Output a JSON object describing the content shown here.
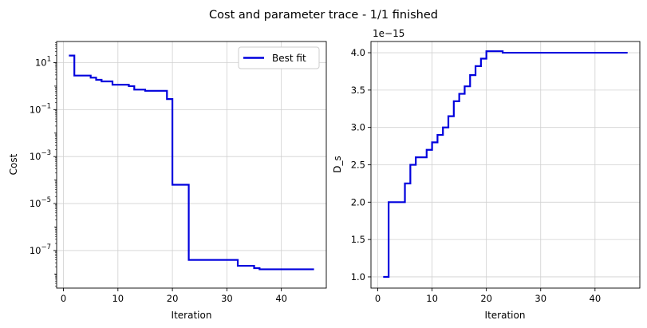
{
  "title": "Cost and parameter trace - 1/1 finished",
  "colors": {
    "line": "#0000dd",
    "grid": "#d0d0d0",
    "axis": "#000000"
  },
  "chart_data": [
    {
      "type": "line",
      "step": true,
      "scale": "log10",
      "xlabel": "Iteration",
      "ylabel": "Cost",
      "xlim": [
        -1.25,
        48.25
      ],
      "ylim_log10": [
        -8.6,
        1.9
      ],
      "xticks": [
        0,
        10,
        20,
        30,
        40
      ],
      "xtick_labels": [
        "0",
        "10",
        "20",
        "30",
        "40"
      ],
      "ytick_log10": [
        1,
        -1,
        -3,
        -5,
        -7
      ],
      "ytick_bases": [
        "10",
        "10",
        "10",
        "10",
        "10"
      ],
      "ytick_exponents": [
        "1",
        "−1",
        "−3",
        "−5",
        "−7"
      ],
      "grid": true,
      "legend": {
        "label": "Best fit",
        "position": "top-right"
      },
      "series": [
        {
          "name": "Best fit",
          "x": [
            1,
            2,
            5,
            6,
            7,
            9,
            12,
            13,
            15,
            19,
            20,
            23,
            32,
            35,
            36,
            46
          ],
          "log10y": [
            1.3,
            0.45,
            0.36,
            0.27,
            0.2,
            0.06,
            0.0,
            -0.15,
            -0.2,
            -0.55,
            -4.2,
            -7.4,
            -7.65,
            -7.75,
            -7.8,
            -7.8
          ]
        }
      ]
    },
    {
      "type": "line",
      "step": true,
      "xlabel": "Iteration",
      "ylabel": "D_s",
      "offset_label": "1e−15",
      "xlim": [
        -1.25,
        48.25
      ],
      "ylim": [
        0.85,
        4.15
      ],
      "xticks": [
        0,
        10,
        20,
        30,
        40
      ],
      "xtick_labels": [
        "0",
        "10",
        "20",
        "30",
        "40"
      ],
      "yticks": [
        1.0,
        1.5,
        2.0,
        2.5,
        3.0,
        3.5,
        4.0
      ],
      "ytick_labels": [
        "1.0",
        "1.5",
        "2.0",
        "2.5",
        "3.0",
        "3.5",
        "4.0"
      ],
      "grid": true,
      "series": [
        {
          "name": "D_s",
          "x": [
            1,
            2,
            5,
            6,
            7,
            9,
            10,
            11,
            12,
            13,
            14,
            15,
            16,
            17,
            18,
            19,
            20,
            23,
            46
          ],
          "y": [
            1.0,
            2.0,
            2.25,
            2.5,
            2.6,
            2.7,
            2.8,
            2.9,
            3.0,
            3.15,
            3.35,
            3.45,
            3.55,
            3.7,
            3.82,
            3.92,
            4.02,
            4.0,
            4.0
          ]
        }
      ]
    }
  ]
}
